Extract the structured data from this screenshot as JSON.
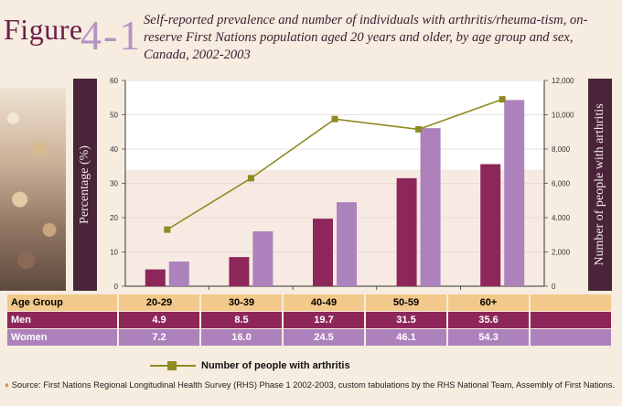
{
  "figure": {
    "word": "Figure",
    "number": "4-1"
  },
  "title": "Self-reported prevalence and number of individuals with arthritis/rheuma-tism, on-reserve First Nations population aged 20 years and older, by age group and sex, Canada, 2002-2003",
  "left_axis_label": "Percentage (%)",
  "right_axis_label": "Number of people with arthritis",
  "chart_data": {
    "type": "bar",
    "categories": [
      "20-29",
      "30-39",
      "40-49",
      "50-59",
      "60+"
    ],
    "series": [
      {
        "name": "Men",
        "values": [
          4.9,
          8.5,
          19.7,
          31.5,
          35.6
        ],
        "color": "#8e2759"
      },
      {
        "name": "Women",
        "values": [
          7.2,
          16.0,
          24.5,
          46.1,
          54.3
        ],
        "color": "#ad82bc"
      }
    ],
    "line_series": {
      "name": "Number of people with arthritis",
      "values": [
        3300,
        6300,
        9750,
        9150,
        10900
      ],
      "color": "#8f8a21",
      "axis": "right"
    },
    "ylim": [
      0,
      60
    ],
    "y_ticks": [
      0,
      10,
      20,
      30,
      40,
      50,
      60
    ],
    "y2lim": [
      0,
      12000
    ],
    "y2_ticks": [
      "0",
      "2,000",
      "4,000",
      "6,000",
      "8,000",
      "10,000",
      "12,000"
    ],
    "y2_tick_values": [
      0,
      2000,
      4000,
      6000,
      8000,
      10000,
      12000
    ],
    "legend_position": "bottom"
  },
  "table": {
    "header_label": "Age Group",
    "men_label": "Men",
    "women_label": "Women",
    "age_groups": [
      "20-29",
      "30-39",
      "40-49",
      "50-59",
      "60+"
    ],
    "men": [
      "4.9",
      "8.5",
      "19.7",
      "31.5",
      "35.6"
    ],
    "women": [
      "7.2",
      "16.0",
      "24.5",
      "46.1",
      "54.3"
    ]
  },
  "legend_label": "Number of people with arthritis",
  "source_bullet": "♦",
  "source": "Source: First Nations Regional Longitudinal Health Survey (RHS) Phase 1 2002-2003, custom tabulations by the RHS National Team, Assembly of First Nations."
}
